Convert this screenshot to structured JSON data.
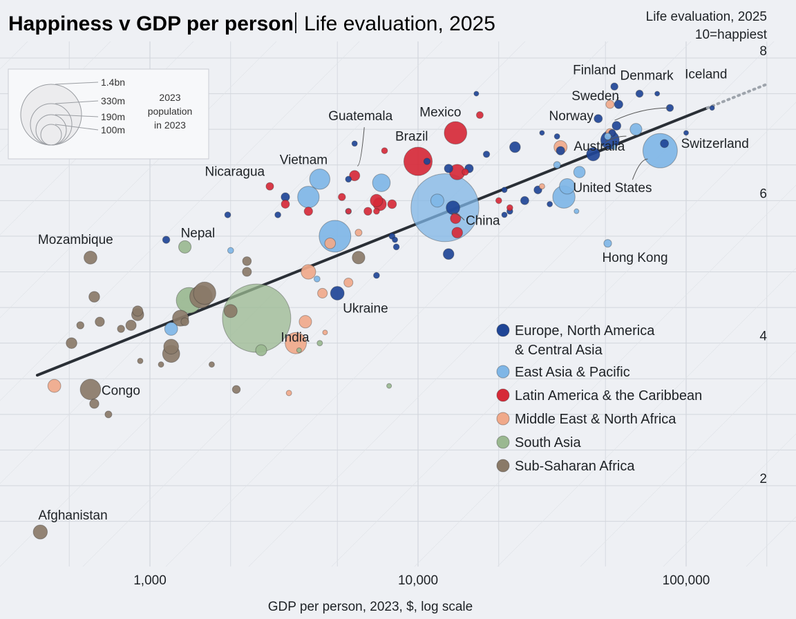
{
  "header": {
    "title": "Happiness v GDP per person",
    "subtitle": "Life evaluation, 2025",
    "corner_line1": "Life evaluation, 2025",
    "corner_line2": "10=happiest"
  },
  "size_legend": {
    "labels": [
      "1.4bn",
      "330m",
      "190m",
      "100m"
    ],
    "populations_m": [
      1400,
      330,
      190,
      100
    ],
    "caption": [
      "2023",
      "population",
      "in 2023"
    ]
  },
  "colors": {
    "europe_na_ca": "#1f4596",
    "east_asia_pacific": "#7fb6e6",
    "latin_america": "#d62a38",
    "mena": "#f0a98a",
    "south_asia": "#9ab890",
    "ssa": "#8a7a68",
    "trend": "#2a2f36",
    "grid": "#d2d6dc"
  },
  "chart_data": {
    "type": "scatter",
    "title": "Happiness v GDP per person",
    "subtitle": "Life evaluation, 2025",
    "xlabel": "GDP per person, 2023, $, log scale",
    "ylabel": "Life evaluation, 2025 10=happiest",
    "x_scale": "log",
    "xlim": [
      380,
      200000
    ],
    "ylim": [
      1.2,
      8.3
    ],
    "x_ticks": [
      1000,
      10000,
      100000
    ],
    "x_tick_labels": [
      "1,000",
      "10,000",
      "100,000"
    ],
    "y_ticks": [
      2,
      4,
      6,
      8
    ],
    "y_tick_labels": [
      "2",
      "4",
      "6",
      "8"
    ],
    "grid": true,
    "legend_position": "right",
    "trend_line": {
      "x": [
        380,
        120000
      ],
      "y": [
        3.55,
        7.3
      ],
      "dotted_to_x": 200000
    },
    "series": [
      {
        "name": "Europe, North America & Central Asia",
        "color_key": "europe_na_ca",
        "points": [
          {
            "x": 54000,
            "y": 7.6,
            "pop": 6,
            "label": "Finland"
          },
          {
            "x": 67000,
            "y": 7.5,
            "pop": 6,
            "label": "Denmark"
          },
          {
            "x": 78000,
            "y": 7.5,
            "pop": 0.4,
            "label": "Iceland"
          },
          {
            "x": 56000,
            "y": 7.35,
            "pop": 10,
            "label": "Sweden"
          },
          {
            "x": 87000,
            "y": 7.3,
            "pop": 5.5,
            "label": "Norway"
          },
          {
            "x": 83000,
            "y": 6.8,
            "pop": 9,
            "label": "Switzerland"
          },
          {
            "x": 52000,
            "y": 6.85,
            "pop": 80
          },
          {
            "x": 45000,
            "y": 6.65,
            "pop": 35
          },
          {
            "x": 34000,
            "y": 6.7,
            "pop": 10
          },
          {
            "x": 23000,
            "y": 6.75,
            "pop": 20
          },
          {
            "x": 18000,
            "y": 6.65,
            "pop": 4
          },
          {
            "x": 15500,
            "y": 6.45,
            "pop": 10
          },
          {
            "x": 13000,
            "y": 6.45,
            "pop": 10
          },
          {
            "x": 13500,
            "y": 5.9,
            "pop": 38
          },
          {
            "x": 13000,
            "y": 5.25,
            "pop": 20
          },
          {
            "x": 10800,
            "y": 6.55,
            "pop": 4
          },
          {
            "x": 5000,
            "y": 4.7,
            "pop": 38,
            "label": "Ukraine"
          },
          {
            "x": 3200,
            "y": 6.05,
            "pop": 10
          },
          {
            "x": 3000,
            "y": 5.8,
            "pop": 3
          },
          {
            "x": 1150,
            "y": 5.45,
            "pop": 6
          },
          {
            "x": 1950,
            "y": 5.8,
            "pop": 3
          },
          {
            "x": 5500,
            "y": 6.3,
            "pop": 3
          },
          {
            "x": 5800,
            "y": 6.8,
            "pop": 2
          },
          {
            "x": 8000,
            "y": 5.5,
            "pop": 3
          },
          {
            "x": 8300,
            "y": 5.35,
            "pop": 3
          },
          {
            "x": 7000,
            "y": 4.95,
            "pop": 3
          },
          {
            "x": 8200,
            "y": 5.45,
            "pop": 2
          },
          {
            "x": 25000,
            "y": 6.0,
            "pop": 9
          },
          {
            "x": 21000,
            "y": 5.8,
            "pop": 2
          },
          {
            "x": 28000,
            "y": 6.15,
            "pop": 8
          },
          {
            "x": 31000,
            "y": 5.95,
            "pop": 2
          },
          {
            "x": 33000,
            "y": 6.9,
            "pop": 2
          },
          {
            "x": 29000,
            "y": 6.95,
            "pop": 1
          },
          {
            "x": 53000,
            "y": 6.95,
            "pop": 5
          },
          {
            "x": 55000,
            "y": 7.05,
            "pop": 11
          },
          {
            "x": 47000,
            "y": 7.15,
            "pop": 9
          },
          {
            "x": 100000,
            "y": 6.95,
            "pop": 0.6
          },
          {
            "x": 125000,
            "y": 7.3,
            "pop": 0.7
          },
          {
            "x": 16500,
            "y": 7.5,
            "pop": 0.4
          },
          {
            "x": 22000,
            "y": 5.85,
            "pop": 3
          },
          {
            "x": 21000,
            "y": 6.15,
            "pop": 2
          }
        ]
      },
      {
        "name": "East Asia & Pacific",
        "color_key": "east_asia_pacific",
        "points": [
          {
            "x": 12600,
            "y": 5.9,
            "pop": 1410,
            "label": "China"
          },
          {
            "x": 4300,
            "y": 6.3,
            "pop": 100,
            "label": "Vietnam"
          },
          {
            "x": 80000,
            "y": 6.7,
            "pop": 330,
            "label": "United States"
          },
          {
            "x": 65000,
            "y": 7.0,
            "pop": 26,
            "label": "Australia"
          },
          {
            "x": 51000,
            "y": 5.4,
            "pop": 7.5,
            "label": "Hong Kong"
          },
          {
            "x": 35000,
            "y": 6.05,
            "pop": 125
          },
          {
            "x": 36000,
            "y": 6.2,
            "pop": 52
          },
          {
            "x": 40000,
            "y": 6.4,
            "pop": 24
          },
          {
            "x": 4900,
            "y": 5.5,
            "pop": 275
          },
          {
            "x": 3900,
            "y": 6.05,
            "pop": 115
          },
          {
            "x": 7300,
            "y": 6.25,
            "pop": 72
          },
          {
            "x": 11800,
            "y": 6.0,
            "pop": 34
          },
          {
            "x": 33000,
            "y": 6.5,
            "pop": 5
          },
          {
            "x": 51000,
            "y": 6.9,
            "pop": 5
          },
          {
            "x": 4200,
            "y": 4.9,
            "pop": 3
          },
          {
            "x": 2000,
            "y": 5.3,
            "pop": 3
          },
          {
            "x": 5500,
            "y": 5.85,
            "pop": 3
          },
          {
            "x": 39000,
            "y": 5.85,
            "pop": 1
          },
          {
            "x": 54000,
            "y": 6.75,
            "pop": 1
          },
          {
            "x": 1200,
            "y": 4.2,
            "pop": 33
          }
        ]
      },
      {
        "name": "Latin America & the Caribbean",
        "color_key": "latin_america",
        "points": [
          {
            "x": 13800,
            "y": 6.95,
            "pop": 128,
            "label": "Mexico"
          },
          {
            "x": 10000,
            "y": 6.55,
            "pop": 216,
            "label": "Brazil"
          },
          {
            "x": 5800,
            "y": 6.35,
            "pop": 18,
            "label": "Guatemala"
          },
          {
            "x": 2800,
            "y": 6.2,
            "pop": 7,
            "label": "Nicaragua"
          },
          {
            "x": 14000,
            "y": 6.4,
            "pop": 52
          },
          {
            "x": 15000,
            "y": 6.4,
            "pop": 4
          },
          {
            "x": 17000,
            "y": 7.2,
            "pop": 5
          },
          {
            "x": 13800,
            "y": 5.75,
            "pop": 18
          },
          {
            "x": 14000,
            "y": 5.55,
            "pop": 20
          },
          {
            "x": 7000,
            "y": 6.0,
            "pop": 30
          },
          {
            "x": 7200,
            "y": 5.95,
            "pop": 34
          },
          {
            "x": 8000,
            "y": 5.95,
            "pop": 11
          },
          {
            "x": 6500,
            "y": 5.85,
            "pop": 8
          },
          {
            "x": 5200,
            "y": 6.05,
            "pop": 6
          },
          {
            "x": 3900,
            "y": 5.85,
            "pop": 10
          },
          {
            "x": 3200,
            "y": 5.95,
            "pop": 9
          },
          {
            "x": 7500,
            "y": 6.7,
            "pop": 3
          },
          {
            "x": 7000,
            "y": 5.85,
            "pop": 3
          },
          {
            "x": 5500,
            "y": 5.85,
            "pop": 2
          },
          {
            "x": 20000,
            "y": 6.0,
            "pop": 3
          },
          {
            "x": 22000,
            "y": 5.9,
            "pop": 3
          }
        ]
      },
      {
        "name": "Middle East & North Africa",
        "color_key": "mena",
        "points": [
          {
            "x": 34000,
            "y": 6.75,
            "pop": 34
          },
          {
            "x": 52000,
            "y": 6.95,
            "pop": 10
          },
          {
            "x": 52000,
            "y": 7.35,
            "pop": 9
          },
          {
            "x": 4700,
            "y": 5.4,
            "pop": 20
          },
          {
            "x": 3900,
            "y": 5.0,
            "pop": 45
          },
          {
            "x": 4500,
            "y": 4.15,
            "pop": 1
          },
          {
            "x": 5500,
            "y": 4.85,
            "pop": 12
          },
          {
            "x": 3800,
            "y": 4.3,
            "pop": 30
          },
          {
            "x": 4400,
            "y": 4.7,
            "pop": 15
          },
          {
            "x": 3500,
            "y": 4.0,
            "pop": 112
          },
          {
            "x": 3300,
            "y": 3.3,
            "pop": 2
          },
          {
            "x": 440,
            "y": 3.4,
            "pop": 33
          },
          {
            "x": 29000,
            "y": 6.2,
            "pop": 2
          },
          {
            "x": 6000,
            "y": 5.55,
            "pop": 5
          }
        ]
      },
      {
        "name": "South Asia",
        "color_key": "south_asia",
        "points": [
          {
            "x": 2500,
            "y": 4.35,
            "pop": 1430,
            "label": "India"
          },
          {
            "x": 1350,
            "y": 5.35,
            "pop": 30,
            "label": "Nepal"
          },
          {
            "x": 1400,
            "y": 4.6,
            "pop": 172
          },
          {
            "x": 2600,
            "y": 3.9,
            "pop": 22
          },
          {
            "x": 3600,
            "y": 3.9,
            "pop": 1
          },
          {
            "x": 4300,
            "y": 4.0,
            "pop": 2
          },
          {
            "x": 7800,
            "y": 3.4,
            "pop": 0.8
          }
        ]
      },
      {
        "name": "Sub-Saharan Africa",
        "color_key": "ssa",
        "points": [
          {
            "x": 600,
            "y": 5.2,
            "pop": 33,
            "label": "Mozambique"
          },
          {
            "x": 600,
            "y": 3.35,
            "pop": 102,
            "label": "Congo"
          },
          {
            "x": 390,
            "y": 1.35,
            "pop": 41,
            "label": "Afghanistan"
          },
          {
            "x": 1600,
            "y": 4.7,
            "pop": 125
          },
          {
            "x": 1550,
            "y": 4.65,
            "pop": 127
          },
          {
            "x": 1200,
            "y": 3.85,
            "pop": 67
          },
          {
            "x": 1300,
            "y": 4.35,
            "pop": 56
          },
          {
            "x": 1200,
            "y": 3.95,
            "pop": 47
          },
          {
            "x": 2000,
            "y": 4.45,
            "pop": 34
          },
          {
            "x": 900,
            "y": 4.4,
            "pop": 28
          },
          {
            "x": 620,
            "y": 4.65,
            "pop": 20
          },
          {
            "x": 510,
            "y": 4.0,
            "pop": 20
          },
          {
            "x": 550,
            "y": 4.25,
            "pop": 6
          },
          {
            "x": 650,
            "y": 4.3,
            "pop": 13
          },
          {
            "x": 780,
            "y": 4.2,
            "pop": 6
          },
          {
            "x": 850,
            "y": 4.25,
            "pop": 18
          },
          {
            "x": 620,
            "y": 3.15,
            "pop": 13
          },
          {
            "x": 2300,
            "y": 5.0,
            "pop": 12
          },
          {
            "x": 1100,
            "y": 3.7,
            "pop": 2
          },
          {
            "x": 920,
            "y": 3.75,
            "pop": 2
          },
          {
            "x": 1350,
            "y": 4.3,
            "pop": 8
          },
          {
            "x": 700,
            "y": 3.0,
            "pop": 5
          },
          {
            "x": 2300,
            "y": 5.15,
            "pop": 11
          },
          {
            "x": 6000,
            "y": 5.2,
            "pop": 31
          },
          {
            "x": 2100,
            "y": 3.35,
            "pop": 8
          },
          {
            "x": 1700,
            "y": 3.7,
            "pop": 2
          },
          {
            "x": 900,
            "y": 4.45,
            "pop": 18
          }
        ]
      }
    ]
  }
}
